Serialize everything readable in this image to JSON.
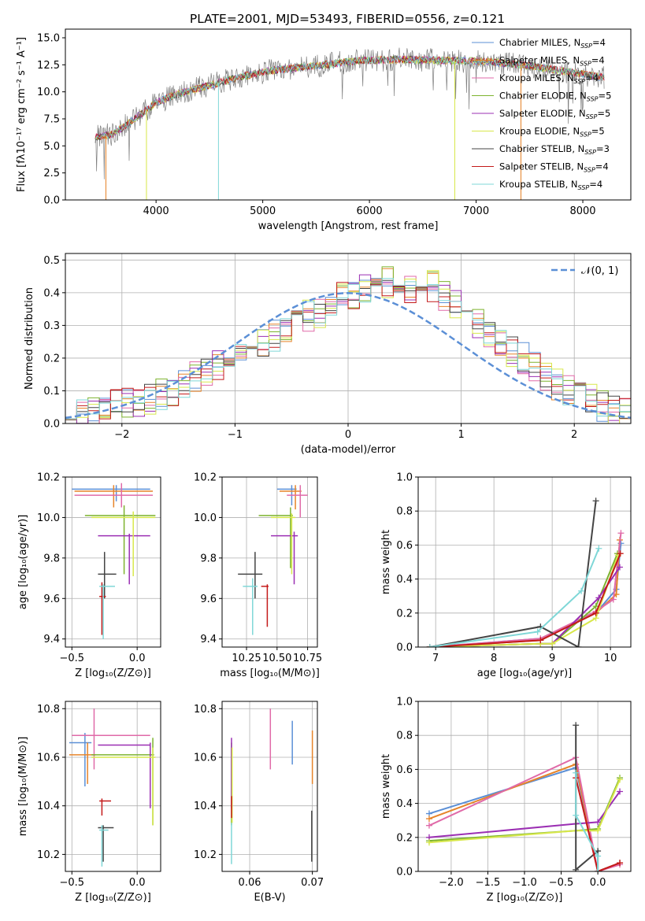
{
  "figure_title": "PLATE=2001, MJD=53493, FIBERID=0556, z=0.121",
  "colors": {
    "chabrier_miles": "#5b8fd6",
    "salpeter_miles": "#e6842a",
    "kroupa_miles": "#e06aa8",
    "chabrier_elodie": "#7db32f",
    "salpeter_elodie": "#9b2fb3",
    "kroupa_elodie": "#d8e84c",
    "chabrier_stelib": "#444444",
    "salpeter_stelib": "#c41a1a",
    "kroupa_stelib": "#7fd7d7",
    "data_gray": "#808080",
    "gauss": "#5b8fd6"
  },
  "chart_data": [
    {
      "id": "spectrum",
      "type": "line",
      "title": "PLATE=2001, MJD=53493, FIBERID=0556, z=0.121",
      "xlabel": "wavelength [Angstrom, rest frame]",
      "ylabel": "Flux [fλ10⁻¹⁷ erg cm⁻² s⁻¹ A⁻¹]",
      "xlim": [
        3150,
        8450
      ],
      "ylim": [
        0,
        15.8
      ],
      "xticks": [
        4000,
        5000,
        6000,
        7000,
        8000
      ],
      "yticks": [
        0.0,
        2.5,
        5.0,
        7.5,
        10.0,
        12.5,
        15.0
      ],
      "xtick_labels": [
        "4000",
        "5000",
        "6000",
        "7000",
        "8000"
      ],
      "ytick_labels": [
        "0.0",
        "2.5",
        "5.0",
        "7.5",
        "10.0",
        "12.5",
        "15.0"
      ],
      "grid": false,
      "legend_position": "upper-right",
      "continuum_x": [
        3430,
        3600,
        3800,
        4000,
        4200,
        4500,
        4800,
        5100,
        5500,
        5900,
        6300,
        6700,
        7100,
        7500,
        7900,
        8200
      ],
      "continuum_y": [
        5.8,
        6.1,
        7.5,
        9.0,
        9.8,
        10.6,
        11.4,
        12.0,
        12.4,
        12.9,
        13.0,
        12.9,
        12.8,
        12.4,
        11.8,
        11.3
      ],
      "data_noise": 1.1,
      "model_noise": 0.35,
      "dips": [
        {
          "x": 3530,
          "y": 0.0,
          "series": 1
        },
        {
          "x": 3910,
          "y": 0.0,
          "series": 5
        },
        {
          "x": 4585,
          "y": 0.0,
          "series": 8
        },
        {
          "x": 6800,
          "y": 0.0,
          "series": 5
        },
        {
          "x": 7420,
          "y": 0.0,
          "series": 1
        }
      ],
      "series": [
        {
          "name": "Chabrier MILES",
          "nssp": "4"
        },
        {
          "name": "Salpeter MILES",
          "nssp": "4"
        },
        {
          "name": "Kroupa MILES",
          "nssp": "4"
        },
        {
          "name": "Chabrier ELODIE",
          "nssp": "5"
        },
        {
          "name": "Salpeter ELODIE",
          "nssp": "5"
        },
        {
          "name": "Kroupa ELODIE",
          "nssp": "5"
        },
        {
          "name": "Chabrier STELIB",
          "nssp": "3"
        },
        {
          "name": "Salpeter STELIB",
          "nssp": "4"
        },
        {
          "name": "Kroupa STELIB",
          "nssp": "4"
        }
      ]
    },
    {
      "id": "residuals",
      "type": "bar",
      "xlabel": "(data-model)/error",
      "ylabel": "Normed distribution",
      "xlim": [
        -2.5,
        2.5
      ],
      "ylim": [
        0,
        0.52
      ],
      "xticks": [
        -2,
        -1,
        0,
        1,
        2
      ],
      "xtick_labels": [
        "−2",
        "−1",
        "0",
        "1",
        "2"
      ],
      "yticks": [
        0.0,
        0.1,
        0.2,
        0.3,
        0.4,
        0.5
      ],
      "ytick_labels": [
        "0.0",
        "0.1",
        "0.2",
        "0.3",
        "0.4",
        "0.5"
      ],
      "grid": true,
      "legend_position": "upper-right",
      "gauss_label": "𝒩(0, 1)",
      "bin_width": 0.1,
      "bin_start": -2.5,
      "base_hist": [
        0.025,
        0.03,
        0.035,
        0.05,
        0.055,
        0.06,
        0.065,
        0.075,
        0.09,
        0.1,
        0.12,
        0.14,
        0.16,
        0.18,
        0.2,
        0.21,
        0.22,
        0.25,
        0.27,
        0.28,
        0.31,
        0.33,
        0.34,
        0.36,
        0.39,
        0.4,
        0.41,
        0.42,
        0.43,
        0.42,
        0.41,
        0.4,
        0.42,
        0.39,
        0.37,
        0.35,
        0.3,
        0.27,
        0.24,
        0.22,
        0.2,
        0.17,
        0.15,
        0.12,
        0.1,
        0.085,
        0.07,
        0.055,
        0.045,
        0.03
      ]
    },
    {
      "id": "age_vs_Z",
      "type": "scatter",
      "xlabel": "Z [log₁₀(Z/Z⊙)]",
      "ylabel": "age  [log₁₀(age/yr)]",
      "xlim": [
        -0.55,
        0.18
      ],
      "ylim": [
        9.36,
        10.2
      ],
      "xticks": [
        -0.5,
        0.0
      ],
      "xtick_labels": [
        "−0.5",
        "0.0"
      ],
      "yticks": [
        9.4,
        9.6,
        9.8,
        10.0,
        10.2
      ],
      "ytick_labels": [
        "9.4",
        "9.6",
        "9.8",
        "10.0",
        "10.2"
      ],
      "grid": true,
      "points": [
        {
          "s": 0,
          "x": -0.16,
          "y": 10.14,
          "xlo": -0.5,
          "xhi": 0.1,
          "ylo": 10.08,
          "yhi": 10.16
        },
        {
          "s": 1,
          "x": -0.18,
          "y": 10.13,
          "xlo": -0.48,
          "xhi": 0.12,
          "ylo": 10.05,
          "yhi": 10.16
        },
        {
          "s": 2,
          "x": -0.12,
          "y": 10.11,
          "xlo": -0.48,
          "xhi": 0.12,
          "ylo": 10.05,
          "yhi": 10.17
        },
        {
          "s": 3,
          "x": -0.1,
          "y": 10.01,
          "xlo": -0.4,
          "xhi": 0.14,
          "ylo": 9.72,
          "yhi": 10.06
        },
        {
          "s": 4,
          "x": -0.06,
          "y": 9.91,
          "xlo": -0.3,
          "xhi": 0.1,
          "ylo": 9.67,
          "yhi": 9.92
        },
        {
          "s": 5,
          "x": -0.03,
          "y": 10.0,
          "xlo": -0.35,
          "xhi": 0.14,
          "ylo": 9.71,
          "yhi": 10.03
        },
        {
          "s": 6,
          "x": -0.25,
          "y": 9.72,
          "xlo": -0.3,
          "xhi": -0.16,
          "ylo": 9.6,
          "yhi": 9.83
        },
        {
          "s": 7,
          "x": -0.27,
          "y": 9.61,
          "xlo": -0.29,
          "xhi": -0.24,
          "ylo": 9.42,
          "yhi": 9.68
        },
        {
          "s": 8,
          "x": -0.26,
          "y": 9.66,
          "xlo": -0.29,
          "xhi": -0.17,
          "ylo": 9.4,
          "yhi": 9.67
        }
      ]
    },
    {
      "id": "age_vs_mass",
      "type": "scatter",
      "xlabel": "mass [log₁₀(M/M⊙)]",
      "ylabel": "",
      "xlim": [
        10.05,
        10.83
      ],
      "ylim": [
        9.36,
        10.2
      ],
      "xticks": [
        10.25,
        10.5,
        10.75
      ],
      "xtick_labels": [
        "10.25",
        "10.50",
        "10.75"
      ],
      "yticks": [
        9.4,
        9.6,
        9.8,
        10.0,
        10.2
      ],
      "ytick_labels": [
        "9.4",
        "9.6",
        "9.8",
        "10.0",
        "10.2"
      ],
      "grid": true,
      "points": [
        {
          "s": 0,
          "x": 10.62,
          "y": 10.14,
          "xlo": 10.5,
          "xhi": 10.66,
          "ylo": 10.06,
          "yhi": 10.16
        },
        {
          "s": 1,
          "x": 10.65,
          "y": 10.13,
          "xlo": 10.52,
          "xhi": 10.7,
          "ylo": 10.04,
          "yhi": 10.16
        },
        {
          "s": 2,
          "x": 10.69,
          "y": 10.11,
          "xlo": 10.58,
          "xhi": 10.75,
          "ylo": 10.0,
          "yhi": 10.16
        },
        {
          "s": 3,
          "x": 10.61,
          "y": 10.01,
          "xlo": 10.35,
          "xhi": 10.63,
          "ylo": 9.75,
          "yhi": 10.05
        },
        {
          "s": 4,
          "x": 10.64,
          "y": 9.91,
          "xlo": 10.45,
          "xhi": 10.67,
          "ylo": 9.67,
          "yhi": 9.93
        },
        {
          "s": 5,
          "x": 10.62,
          "y": 10.0,
          "xlo": 10.45,
          "xhi": 10.65,
          "ylo": 9.72,
          "yhi": 10.02
        },
        {
          "s": 6,
          "x": 10.32,
          "y": 9.72,
          "xlo": 10.18,
          "xhi": 10.38,
          "ylo": 9.6,
          "yhi": 9.83
        },
        {
          "s": 7,
          "x": 10.42,
          "y": 9.66,
          "xlo": 10.37,
          "xhi": 10.43,
          "ylo": 9.46,
          "yhi": 9.67
        },
        {
          "s": 8,
          "x": 10.3,
          "y": 9.66,
          "xlo": 10.22,
          "xhi": 10.34,
          "ylo": 9.42,
          "yhi": 9.7
        }
      ]
    },
    {
      "id": "weight_vs_age",
      "type": "line",
      "xlabel": "age  [log₁₀(age/yr)]",
      "ylabel": "mass weight",
      "xlim": [
        6.7,
        10.35
      ],
      "ylim": [
        0,
        1.0
      ],
      "xticks": [
        7,
        8,
        9,
        10
      ],
      "xtick_labels": [
        "7",
        "8",
        "9",
        "10"
      ],
      "yticks": [
        0.0,
        0.2,
        0.4,
        0.6,
        0.8,
        1.0
      ],
      "ytick_labels": [
        "0.0",
        "0.2",
        "0.4",
        "0.6",
        "0.8",
        "1.0"
      ],
      "grid": true,
      "lines": [
        {
          "s": 0,
          "x": [
            6.9,
            8.8,
            9.75,
            10.1,
            10.18
          ],
          "y": [
            0.0,
            0.05,
            0.2,
            0.34,
            0.61
          ]
        },
        {
          "s": 1,
          "x": [
            6.9,
            8.8,
            9.75,
            10.1,
            10.16
          ],
          "y": [
            0.0,
            0.04,
            0.2,
            0.31,
            0.63
          ]
        },
        {
          "s": 2,
          "x": [
            6.9,
            8.8,
            9.75,
            10.05,
            10.18
          ],
          "y": [
            0.0,
            0.05,
            0.21,
            0.28,
            0.67
          ]
        },
        {
          "s": 3,
          "x": [
            6.9,
            8.8,
            9.0,
            9.75,
            10.12
          ],
          "y": [
            0.0,
            0.02,
            0.02,
            0.24,
            0.55
          ]
        },
        {
          "s": 4,
          "x": [
            6.9,
            8.8,
            9.0,
            9.8,
            10.16
          ],
          "y": [
            0.0,
            0.02,
            0.02,
            0.29,
            0.47
          ]
        },
        {
          "s": 5,
          "x": [
            6.9,
            8.8,
            9.0,
            9.75,
            10.13
          ],
          "y": [
            0.0,
            0.02,
            0.02,
            0.17,
            0.54
          ]
        },
        {
          "s": 6,
          "x": [
            6.9,
            8.8,
            9.45,
            9.75
          ],
          "y": [
            0.0,
            0.12,
            0.0,
            0.86
          ]
        },
        {
          "s": 7,
          "x": [
            6.9,
            8.8,
            9.75,
            10.17
          ],
          "y": [
            0.0,
            0.04,
            0.2,
            0.55
          ]
        },
        {
          "s": 8,
          "x": [
            6.9,
            8.75,
            9.5,
            9.8
          ],
          "y": [
            0.0,
            0.09,
            0.33,
            0.58
          ]
        }
      ]
    },
    {
      "id": "mass_vs_Z",
      "type": "scatter",
      "xlabel": "Z [log₁₀(Z/Z⊙)]",
      "ylabel": "mass [log₁₀(M/M⊙)]",
      "xlim": [
        -0.55,
        0.18
      ],
      "ylim": [
        10.13,
        10.83
      ],
      "xticks": [
        -0.5,
        0.0
      ],
      "xtick_labels": [
        "−0.5",
        "0.0"
      ],
      "yticks": [
        10.2,
        10.4,
        10.6,
        10.8
      ],
      "ytick_labels": [
        "10.2",
        "10.4",
        "10.6",
        "10.8"
      ],
      "grid": true,
      "points": [
        {
          "s": 0,
          "x": -0.4,
          "y": 10.66,
          "xlo": -0.52,
          "xhi": -0.35,
          "ylo": 10.48,
          "yhi": 10.7
        },
        {
          "s": 1,
          "x": -0.38,
          "y": 10.61,
          "xlo": -0.52,
          "xhi": -0.32,
          "ylo": 10.49,
          "yhi": 10.66
        },
        {
          "s": 2,
          "x": -0.33,
          "y": 10.69,
          "xlo": -0.5,
          "xhi": 0.1,
          "ylo": 10.55,
          "yhi": 10.8
        },
        {
          "s": 3,
          "x": 0.12,
          "y": 10.61,
          "xlo": -0.35,
          "xhi": 0.13,
          "ylo": 10.32,
          "yhi": 10.68
        },
        {
          "s": 4,
          "x": 0.1,
          "y": 10.65,
          "xlo": -0.3,
          "xhi": 0.1,
          "ylo": 10.39,
          "yhi": 10.66
        },
        {
          "s": 5,
          "x": 0.12,
          "y": 10.6,
          "xlo": -0.35,
          "xhi": 0.14,
          "ylo": 10.32,
          "yhi": 10.64
        },
        {
          "s": 6,
          "x": -0.26,
          "y": 10.31,
          "xlo": -0.3,
          "xhi": -0.18,
          "ylo": 10.17,
          "yhi": 10.32
        },
        {
          "s": 7,
          "x": -0.27,
          "y": 10.42,
          "xlo": -0.29,
          "xhi": -0.2,
          "ylo": 10.36,
          "yhi": 10.43
        },
        {
          "s": 8,
          "x": -0.27,
          "y": 10.3,
          "xlo": -0.29,
          "xhi": -0.22,
          "ylo": 10.15,
          "yhi": 10.32
        }
      ]
    },
    {
      "id": "mass_vs_ebv",
      "type": "scatter",
      "xlabel": "E(B-V)",
      "ylabel": "",
      "xlim": [
        0.0556,
        0.0708
      ],
      "ylim": [
        10.13,
        10.83
      ],
      "xticks": [
        0.06,
        0.07
      ],
      "xtick_labels": [
        "0.06",
        "0.07"
      ],
      "yticks": [
        10.2,
        10.4,
        10.6,
        10.8
      ],
      "ytick_labels": [
        "10.2",
        "10.4",
        "10.6",
        "10.8"
      ],
      "grid": true,
      "points": [
        {
          "s": 0,
          "x": 0.0668,
          "y": 10.66,
          "ylo": 10.57,
          "yhi": 10.75
        },
        {
          "s": 1,
          "x": 0.07,
          "y": 10.6,
          "ylo": 10.49,
          "yhi": 10.71
        },
        {
          "s": 2,
          "x": 0.0633,
          "y": 10.68,
          "ylo": 10.55,
          "yhi": 10.8
        },
        {
          "s": 3,
          "x": 0.0571,
          "y": 10.6,
          "ylo": 10.32,
          "yhi": 10.66
        },
        {
          "s": 4,
          "x": 0.0571,
          "y": 10.63,
          "ylo": 10.39,
          "yhi": 10.68
        },
        {
          "s": 5,
          "x": 0.0572,
          "y": 10.6,
          "ylo": 10.33,
          "yhi": 10.64
        },
        {
          "s": 6,
          "x": 0.0699,
          "y": 10.29,
          "ylo": 10.17,
          "yhi": 10.38
        },
        {
          "s": 7,
          "x": 0.0571,
          "y": 10.41,
          "ylo": 10.35,
          "yhi": 10.44
        },
        {
          "s": 8,
          "x": 0.0571,
          "y": 10.3,
          "ylo": 10.16,
          "yhi": 10.33
        }
      ]
    },
    {
      "id": "weight_vs_Z",
      "type": "line",
      "xlabel": "Z [log₁₀(Z/Z⊙)]",
      "ylabel": "mass weight",
      "xlim": [
        -2.45,
        0.45
      ],
      "ylim": [
        0,
        1.0
      ],
      "xticks": [
        -2.0,
        -1.5,
        -1.0,
        -0.5,
        0.0
      ],
      "xtick_labels": [
        "−2.0",
        "−1.5",
        "−1.0",
        "−0.5",
        "0.0"
      ],
      "yticks": [
        0.0,
        0.2,
        0.4,
        0.6,
        0.8,
        1.0
      ],
      "ytick_labels": [
        "0.0",
        "0.2",
        "0.4",
        "0.6",
        "0.8",
        "1.0"
      ],
      "grid": true,
      "lines": [
        {
          "s": 0,
          "x": [
            -2.3,
            -0.3,
            0.0,
            0.3
          ],
          "y": [
            0.34,
            0.61,
            0.0,
            0.05
          ]
        },
        {
          "s": 1,
          "x": [
            -2.3,
            -0.3,
            0.0,
            0.3
          ],
          "y": [
            0.31,
            0.63,
            0.0,
            0.05
          ]
        },
        {
          "s": 2,
          "x": [
            -2.3,
            -0.3,
            0.0,
            0.3
          ],
          "y": [
            0.27,
            0.67,
            0.0,
            0.04
          ]
        },
        {
          "s": 3,
          "x": [
            -2.3,
            -0.3,
            0.0,
            0.3
          ],
          "y": [
            0.18,
            0.24,
            0.25,
            0.55
          ]
        },
        {
          "s": 4,
          "x": [
            -2.3,
            -0.3,
            0.0,
            0.3
          ],
          "y": [
            0.2,
            0.28,
            0.29,
            0.47
          ]
        },
        {
          "s": 5,
          "x": [
            -2.3,
            -0.3,
            0.0,
            0.3
          ],
          "y": [
            0.17,
            0.24,
            0.24,
            0.54
          ]
        },
        {
          "s": 6,
          "x": [
            -0.3,
            -0.3,
            0.0,
            0.0
          ],
          "y": [
            0.86,
            0.01,
            0.12,
            0.0
          ]
        },
        {
          "s": 7,
          "x": [
            -0.3,
            0.0,
            0.3
          ],
          "y": [
            0.55,
            0.0,
            0.05
          ]
        },
        {
          "s": 8,
          "x": [
            -0.3,
            -0.3,
            0.0,
            0.0
          ],
          "y": [
            0.58,
            0.33,
            0.09,
            0.0
          ]
        }
      ]
    }
  ]
}
